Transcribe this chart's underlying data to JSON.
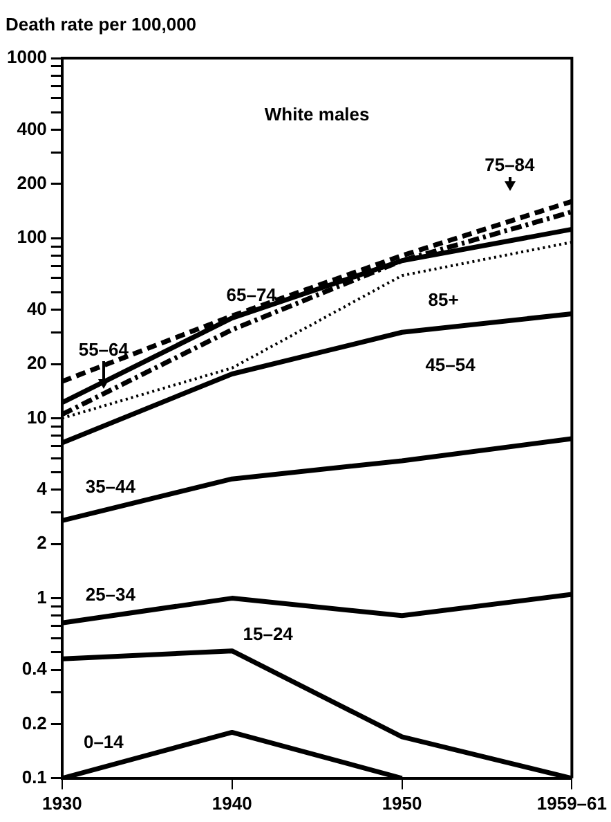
{
  "chart_data": {
    "type": "line",
    "ylabel": "Death rate per 100,000",
    "annotations": [
      "White males"
    ],
    "categories": [
      "1930",
      "1940",
      "1950",
      "1959–61"
    ],
    "log": "y",
    "ylim": [
      0.1,
      1000
    ],
    "yticks": [
      0.1,
      0.2,
      {
        "value": 0.3,
        "label": null
      },
      0.4,
      {
        "value": 0.5,
        "label": null
      },
      {
        "value": 0.6,
        "label": null
      },
      {
        "value": 0.7,
        "label": null
      },
      {
        "value": 0.8,
        "label": null
      },
      {
        "value": 0.9,
        "label": null
      },
      1,
      2,
      {
        "value": 3,
        "label": null
      },
      4,
      {
        "value": 5,
        "label": null
      },
      {
        "value": 6,
        "label": null
      },
      {
        "value": 7,
        "label": null
      },
      {
        "value": 8,
        "label": null
      },
      {
        "value": 9,
        "label": null
      },
      10,
      20,
      {
        "value": 30,
        "label": null
      },
      40,
      {
        "value": 50,
        "label": null
      },
      {
        "value": 60,
        "label": null
      },
      {
        "value": 70,
        "label": null
      },
      {
        "value": 80,
        "label": null
      },
      {
        "value": 90,
        "label": null
      },
      100,
      200,
      {
        "value": 300,
        "label": null
      },
      400,
      {
        "value": 500,
        "label": null
      },
      {
        "value": 600,
        "label": null
      },
      {
        "value": 700,
        "label": null
      },
      {
        "value": 800,
        "label": null
      },
      {
        "value": 900,
        "label": null
      },
      1000
    ],
    "grid": false,
    "legend": false,
    "marker": "none",
    "series": [
      {
        "name": "0–14",
        "color": "#000000",
        "line_style": "solid",
        "values": [
          0.1,
          0.18,
          0.1,
          null
        ]
      },
      {
        "name": "15–24",
        "color": "#000000",
        "line_style": "solid",
        "values": [
          0.46,
          0.51,
          0.17,
          0.1
        ]
      },
      {
        "name": "25–34",
        "color": "#000000",
        "line_style": "solid",
        "values": [
          0.73,
          1.0,
          0.8,
          1.05
        ]
      },
      {
        "name": "35–44",
        "color": "#000000",
        "line_style": "solid",
        "values": [
          2.7,
          4.6,
          5.8,
          7.7
        ]
      },
      {
        "name": "45–54",
        "color": "#000000",
        "line_style": "solid",
        "values": [
          7.3,
          17.6,
          30,
          38
        ]
      },
      {
        "name": "55–64",
        "color": "#000000",
        "line_style": "solid",
        "values": [
          12.2,
          36,
          75,
          112
        ]
      },
      {
        "name": "65–74",
        "color": "#000000",
        "line_style": "dashdot",
        "values": [
          10.5,
          31,
          75,
          140
        ]
      },
      {
        "name": "75–84",
        "color": "#000000",
        "line_style": "dashed",
        "values": [
          16,
          37,
          80,
          160
        ]
      },
      {
        "name": "85+",
        "color": "#000000",
        "line_style": "dotted",
        "values": [
          10,
          19,
          62,
          95
        ]
      }
    ]
  }
}
